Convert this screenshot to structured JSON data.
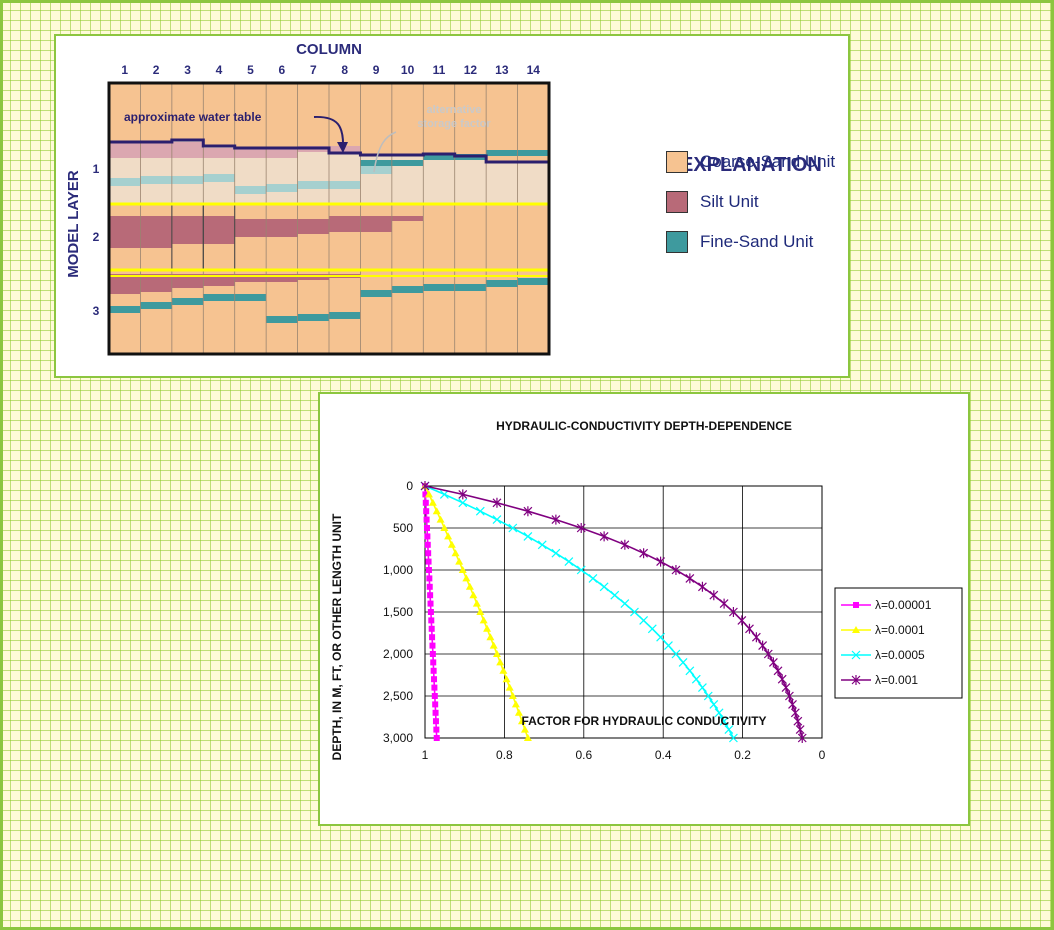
{
  "cross_section": {
    "column_title": "COLUMN",
    "columns": [
      "1",
      "2",
      "3",
      "4",
      "5",
      "6",
      "7",
      "8",
      "9",
      "10",
      "11",
      "12",
      "13",
      "14"
    ],
    "layer_axis_label": "MODEL LAYER",
    "layers": [
      "1",
      "2",
      "3"
    ],
    "annotations": {
      "water_table": "approximate water table",
      "storage_line1": "alternative",
      "storage_line2": "storage factor"
    },
    "colors": {
      "coarse_sand": "#f6c391",
      "coarse_sand_light": "#f0dcc6",
      "silt": "#b86a78",
      "silt_light": "#dba7b0",
      "fine_sand": "#3e9a9e",
      "fine_sand_light": "#a6d0cf",
      "water_table": "#2b1f6e",
      "layer_boundary": "#ffff00"
    }
  },
  "explanation": {
    "title": "EXPLANATION",
    "items": [
      {
        "label": "Coarse-Sand Unit",
        "color": "#f6c391"
      },
      {
        "label": "Silt Unit",
        "color": "#b86a78"
      },
      {
        "label": "Fine-Sand Unit",
        "color": "#3e9a9e"
      }
    ]
  },
  "chart_data": {
    "type": "line",
    "title": "HYDRAULIC-CONDUCTIVITY DEPTH-DEPENDENCE",
    "xlabel": "FACTOR FOR HYDRAULIC CONDUCTIVITY",
    "ylabel": "DEPTH, IN M, FT, OR OTHER LENGTH UNIT",
    "xlim": [
      1,
      0
    ],
    "ylim": [
      0,
      3000
    ],
    "x_reversed": true,
    "y_reversed": true,
    "xticks": [
      "1",
      "0.8",
      "0.6",
      "0.4",
      "0.2",
      "0"
    ],
    "yticks": [
      "0",
      "500",
      "1,000",
      "1,500",
      "2,000",
      "2,500",
      "3,000"
    ],
    "grid": true,
    "legend_position": "right",
    "series": [
      {
        "name": "λ=0.00001",
        "lambda": 1e-05,
        "color": "#ff00ff",
        "marker": "square",
        "step": 100
      },
      {
        "name": "λ=0.0001",
        "lambda": 0.0001,
        "color": "#ffff00",
        "marker": "triangle",
        "step": 100
      },
      {
        "name": "λ=0.0005",
        "lambda": 0.0005,
        "color": "#00ffff",
        "marker": "x",
        "step": 100
      },
      {
        "name": "λ=0.001",
        "lambda": 0.001,
        "color": "#800080",
        "marker": "star",
        "step": 100
      }
    ]
  }
}
